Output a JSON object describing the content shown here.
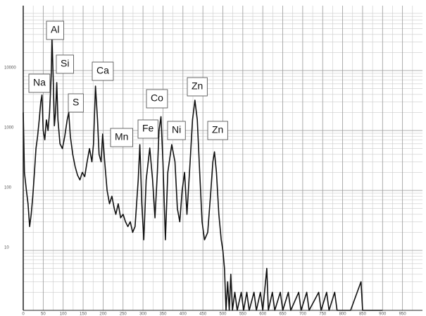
{
  "chart_data": {
    "type": "line",
    "x": [
      0,
      3,
      8,
      12,
      16,
      20,
      24,
      28,
      32,
      36,
      40,
      44,
      47,
      50,
      54,
      58,
      62,
      66,
      70,
      72,
      75,
      78,
      81,
      84,
      87,
      92,
      98,
      104,
      110,
      114,
      118,
      124,
      130,
      136,
      142,
      148,
      154,
      160,
      166,
      172,
      176,
      181,
      186,
      190,
      195,
      199,
      204,
      210,
      216,
      222,
      228,
      232,
      238,
      244,
      250,
      256,
      262,
      268,
      274,
      280,
      288,
      292,
      297,
      302,
      308,
      317,
      324,
      330,
      336,
      340,
      345,
      350,
      356,
      362,
      372,
      380,
      386,
      392,
      398,
      404,
      410,
      418,
      424,
      430,
      436,
      442,
      448,
      454,
      462,
      470,
      475,
      479,
      484,
      490,
      496,
      500,
      504,
      508,
      512,
      516,
      520,
      524,
      530,
      536,
      546,
      552,
      560,
      566,
      578,
      584,
      594,
      600,
      610,
      614,
      624,
      630,
      644,
      650,
      664,
      670,
      690,
      696,
      710,
      716,
      740,
      746,
      760,
      766,
      780,
      786,
      820,
      846,
      850,
      900
    ],
    "values": [
      2000,
      200,
      100,
      60,
      25,
      40,
      80,
      200,
      500,
      800,
      1500,
      3000,
      3900,
      1000,
      700,
      1500,
      1000,
      2000,
      8000,
      34000,
      8000,
      1200,
      2000,
      6300,
      1500,
      600,
      500,
      800,
      1500,
      2000,
      800,
      400,
      250,
      180,
      150,
      200,
      170,
      300,
      500,
      300,
      600,
      5500,
      1500,
      400,
      300,
      870,
      300,
      100,
      60,
      80,
      50,
      40,
      60,
      35,
      40,
      30,
      25,
      30,
      20,
      25,
      150,
      580,
      60,
      15,
      150,
      510,
      150,
      35,
      200,
      1000,
      1700,
      300,
      15,
      200,
      580,
      300,
      50,
      30,
      100,
      200,
      40,
      300,
      1500,
      3200,
      1500,
      200,
      30,
      15,
      20,
      100,
      300,
      440,
      200,
      40,
      15,
      10,
      5,
      1,
      3,
      1,
      4,
      1,
      2,
      1,
      2,
      1,
      2,
      1,
      2,
      1,
      2,
      1,
      5,
      1,
      2,
      1,
      2,
      1,
      2,
      1,
      2,
      1,
      2,
      1,
      2,
      1,
      2,
      1,
      2,
      1,
      1,
      3,
      1,
      1
    ],
    "color": "#111111",
    "xlim": [
      0,
      1000
    ],
    "xticks": [
      0,
      50,
      100,
      150,
      200,
      250,
      300,
      350,
      400,
      450,
      500,
      550,
      600,
      650,
      700,
      750,
      800,
      850,
      900,
      950
    ],
    "ylim": [
      1,
      100000
    ],
    "log_y": true,
    "yticks": [
      10,
      100,
      1000,
      10000
    ],
    "grid": true,
    "minor_grid": true,
    "annotations": [
      "Na",
      "Al",
      "Si",
      "S",
      "Ca",
      "Mn",
      "Fe",
      "Co",
      "Ni",
      "Zn",
      "Zn"
    ]
  }
}
